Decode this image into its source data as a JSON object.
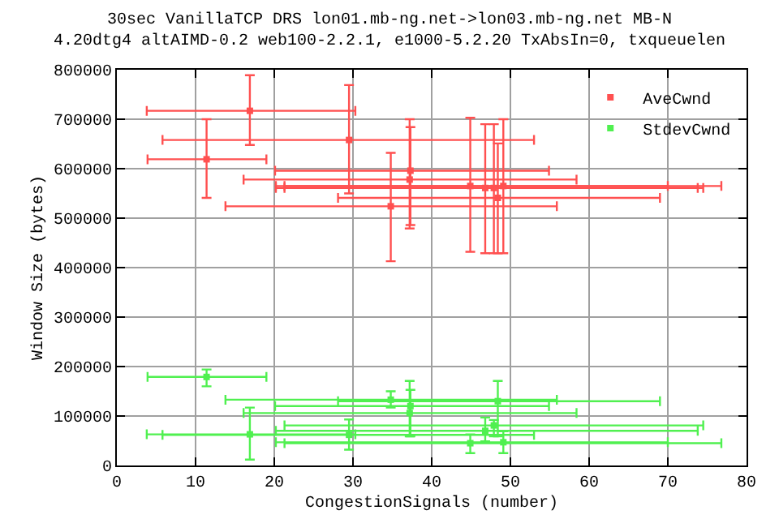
{
  "chart_data": {
    "type": "scatter",
    "title": "30sec VanillaTCP DRS lon01.mb-ng.net->lon03.mb-ng.net MB-N\n4.20dtg4 altAIMD-0.2 web100-2.2.1, e1000-5.2.20 TxAbsIn=0, txqueuelen",
    "xlabel": "CongestionSignals (number)",
    "ylabel": "Window Size (bytes)",
    "xlim": [
      0,
      80
    ],
    "xticks": [
      0,
      10,
      20,
      30,
      40,
      50,
      60,
      70,
      80
    ],
    "ylim": [
      0,
      800000
    ],
    "yticks": [
      0,
      100000,
      200000,
      300000,
      400000,
      500000,
      600000,
      700000,
      800000
    ],
    "grid": true,
    "legend": "top right",
    "marker": "square",
    "series": [
      {
        "name": "AveCwnd",
        "color": "#ff5050",
        "x": [
          16.9,
          11.4,
          29.5,
          37.2,
          37.3,
          34.8,
          44.9,
          46.8,
          47.9,
          49.1,
          48.4
        ],
        "values": [
          717000,
          619000,
          658000,
          578000,
          596000,
          524000,
          565000,
          561000,
          561000,
          565000,
          541000
        ],
        "errors": [
          [
            648000,
            789000
          ],
          [
            541000,
            700000
          ],
          [
            550000,
            769000
          ],
          [
            479000,
            700000
          ],
          [
            486000,
            684000
          ],
          [
            413000,
            632000
          ],
          [
            432000,
            703000
          ],
          [
            429000,
            690000
          ],
          [
            429000,
            690000
          ],
          [
            429000,
            700000
          ],
          [
            429000,
            651000
          ]
        ],
        "xerrors": [
          [
            3.8,
            30.3
          ],
          [
            3.9,
            19.0
          ],
          [
            5.8,
            53.0
          ],
          [
            16.1,
            58.4
          ],
          [
            20.1,
            54.9
          ],
          [
            13.8,
            55.9
          ],
          [
            21.3,
            76.8
          ],
          [
            20.2,
            73.8
          ],
          [
            21.3,
            74.5
          ],
          [
            20.2,
            70.0
          ],
          [
            28.1,
            69.0
          ]
        ]
      },
      {
        "name": "StdevCwnd",
        "color": "#50f050",
        "x": [
          16.9,
          11.4,
          29.5,
          37.2,
          37.3,
          34.8,
          44.9,
          46.8,
          47.9,
          49.1,
          48.4
        ],
        "values": [
          63000,
          179000,
          62000,
          106000,
          120000,
          133000,
          45000,
          70000,
          81000,
          47000,
          130000
        ],
        "errors": [
          [
            12000,
            117000
          ],
          [
            160000,
            194000
          ],
          [
            32000,
            93000
          ],
          [
            59000,
            171000
          ],
          [
            59000,
            153000
          ],
          [
            117000,
            150000
          ],
          [
            25000,
            63000
          ],
          [
            49000,
            97000
          ],
          [
            59000,
            92000
          ],
          [
            25000,
            69000
          ],
          [
            59000,
            171000
          ]
        ],
        "xerrors": [
          [
            3.8,
            30.3
          ],
          [
            3.9,
            19.0
          ],
          [
            5.8,
            53.0
          ],
          [
            16.1,
            58.4
          ],
          [
            20.1,
            54.9
          ],
          [
            13.8,
            55.9
          ],
          [
            21.3,
            76.8
          ],
          [
            20.2,
            73.8
          ],
          [
            21.3,
            74.5
          ],
          [
            20.2,
            70.0
          ],
          [
            28.1,
            69.0
          ]
        ]
      }
    ]
  }
}
